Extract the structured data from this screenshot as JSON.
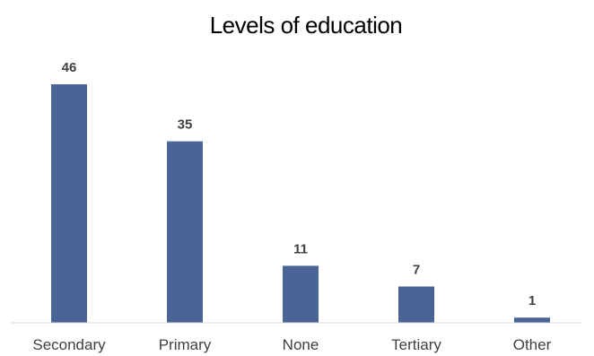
{
  "chart_data": {
    "type": "bar",
    "title": "Levels of education",
    "categories": [
      "Secondary",
      "Primary",
      "None",
      "Tertiary",
      "Other"
    ],
    "values": [
      46,
      35,
      11,
      7,
      1
    ],
    "data_labels": [
      "46",
      "35",
      "11",
      "7",
      "1"
    ],
    "xlabel": "",
    "ylabel": "",
    "ylim": [
      0,
      46
    ],
    "grid": false,
    "legend": "none",
    "bar_color": "#4a6496",
    "axis_color": "#d9d9d9"
  }
}
